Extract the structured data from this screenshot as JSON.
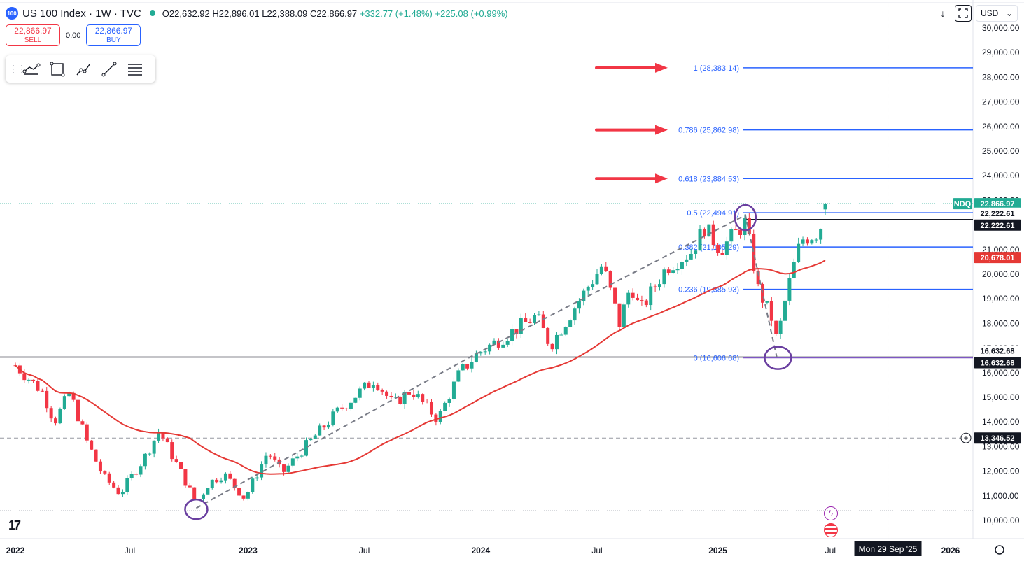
{
  "header": {
    "logo_text": "100",
    "symbol": "US 100 Index · 1W · TVC",
    "open": "O22,632.92",
    "high": "H22,896.01",
    "low": "L22,388.09",
    "close": "C22,866.97",
    "change": "+332.77 (+1.48%)",
    "change2": "+225.08 (+0.99%)"
  },
  "trade": {
    "sell_price": "22,866.97",
    "sell_label": "SELL",
    "spread": "0.00",
    "buy_price": "22,866.97",
    "buy_label": "BUY"
  },
  "top_right": {
    "currency": "USD",
    "arrow_down": "↓",
    "chevron": "⌄"
  },
  "icons": {
    "toolbar": [
      "drawing-template-icon",
      "rectangle-icon",
      "polyline-icon",
      "trend-line-icon",
      "fib-retracement-icon"
    ],
    "tv_logo": "17"
  },
  "colors": {
    "up": "#22ab94",
    "down": "#f23645",
    "ma": "#e53935",
    "fib": "#2962ff",
    "fib_text": "#2962ff",
    "arrow": "#f23645",
    "circle": "#6a3fa0",
    "hline": "#131722",
    "zero_line": "#7e57c2",
    "ndq_label": "#22ab94"
  },
  "chart_data": {
    "type": "candlestick",
    "timeframe": "1W",
    "y_axis": {
      "ticks": [
        10000,
        11000,
        12000,
        13000,
        14000,
        15000,
        16000,
        17000,
        18000,
        19000,
        20000,
        21000,
        22000,
        23000,
        24000,
        25000,
        26000,
        27000,
        28000,
        29000,
        30000
      ],
      "tick_labels": [
        "10,000.00",
        "11,000.00",
        "12,000.00",
        "13,000.00",
        "14,000.00",
        "15,000.00",
        "16,000.00",
        "17,000.00",
        "18,000.00",
        "19,000.00",
        "20,000.00",
        "21,000.00",
        "22,000.00",
        "23,000.00",
        "24,000.00",
        "25,000.00",
        "26,000.00",
        "27,000.00",
        "28,000.00",
        "29,000.00",
        "30,000.00"
      ]
    },
    "x_axis": {
      "labels": [
        "2022",
        "Jul",
        "2023",
        "Jul",
        "2024",
        "Jul",
        "2025",
        "Jul",
        "2026"
      ],
      "label_dates": [
        "2022-01-03",
        "2022-07-01",
        "2023-01-02",
        "2023-07-03",
        "2024-01-01",
        "2024-07-01",
        "2025-01-06",
        "2025-07-01",
        "2026-01-05"
      ],
      "crosshair_date": "2025-09-29",
      "crosshair_label": "Mon 29 Sep '25"
    },
    "fib_levels": [
      {
        "ratio": 1,
        "value": 28383.14,
        "label": "1 (28,383.14)"
      },
      {
        "ratio": 0.786,
        "value": 25862.98,
        "label": "0.786 (25,862.98)"
      },
      {
        "ratio": 0.618,
        "value": 23884.53,
        "label": "0.618 (23,884.53)"
      },
      {
        "ratio": 0.5,
        "value": 22494.91,
        "label": "0.5 (22,494.91)"
      },
      {
        "ratio": 0.382,
        "value": 21105.29,
        "label": "0.382 (21,105.29)"
      },
      {
        "ratio": 0.236,
        "value": 19385.93,
        "label": "0.236 (19,385.93)"
      },
      {
        "ratio": 0,
        "value": 16606.68,
        "label": "0 (16,606.68)"
      }
    ],
    "price_labels": [
      {
        "text": "NDQ",
        "value": 22866.97,
        "kind": "ndq"
      },
      {
        "text": "22,866.97",
        "value": 22866.97,
        "kind": "last"
      },
      {
        "text": "22,222.61",
        "value": 22222.61,
        "kind": "hline"
      },
      {
        "text": "22,222.61",
        "value": 22222.61,
        "kind": "hline2"
      },
      {
        "text": "20,678.01",
        "value": 20678.01,
        "kind": "ma"
      },
      {
        "text": "16,632.68",
        "value": 16632.68,
        "kind": "hline"
      },
      {
        "text": "16,632.68",
        "value": 16632.68,
        "kind": "hline2"
      },
      {
        "text": "13,346.52",
        "value": 13346.52,
        "kind": "crosshair"
      }
    ],
    "horizontal_lines": [
      22222.61,
      16632.68
    ],
    "crosshair_price": 13346.52,
    "last_price": 22866.97,
    "ma_last": 20678.01
  }
}
